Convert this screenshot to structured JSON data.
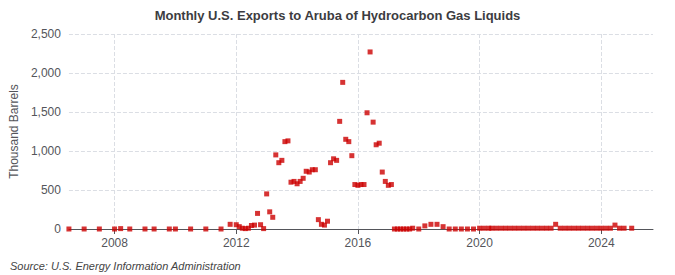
{
  "chart_data": {
    "type": "scatter",
    "title": "Monthly U.S. Exports to Aruba of Hydrocarbon Gas Liquids",
    "ylabel": "Thousand Barrels",
    "annotations": [
      "Source: U.S. Energy Information Administration"
    ],
    "color": "#cc0000",
    "marker": "square",
    "grid": true,
    "xlim": [
      2006.5,
      2025.7
    ],
    "xticks": [
      2008,
      2012,
      2016,
      2020,
      2024
    ],
    "ylim": [
      0,
      2500
    ],
    "yticks": [
      0,
      500,
      {
        "value": 1000,
        "label": "1,000"
      },
      {
        "value": 1500,
        "label": "1,500"
      },
      {
        "value": 2000,
        "label": "2,000"
      },
      {
        "value": 2500,
        "label": "2,500"
      }
    ],
    "x": [
      2006.5,
      2007.0,
      2007.5,
      2008.0,
      2008.2,
      2008.5,
      2009.0,
      2009.3,
      2009.8,
      2010.0,
      2010.5,
      2011.0,
      2011.5,
      2011.8,
      2012.0,
      2012.1,
      2012.2,
      2012.3,
      2012.4,
      2012.5,
      2012.6,
      2012.7,
      2012.8,
      2012.9,
      2013.0,
      2013.1,
      2013.2,
      2013.3,
      2013.4,
      2013.5,
      2013.6,
      2013.7,
      2013.8,
      2013.9,
      2014.0,
      2014.1,
      2014.2,
      2014.3,
      2014.4,
      2014.5,
      2014.6,
      2014.7,
      2014.8,
      2014.9,
      2015.0,
      2015.1,
      2015.2,
      2015.3,
      2015.4,
      2015.5,
      2015.6,
      2015.7,
      2015.8,
      2015.9,
      2016.0,
      2016.1,
      2016.2,
      2016.3,
      2016.4,
      2016.5,
      2016.6,
      2016.7,
      2016.8,
      2016.9,
      2017.0,
      2017.1,
      2017.2,
      2017.3,
      2017.4,
      2017.5,
      2017.6,
      2017.7,
      2017.8,
      2018.0,
      2018.2,
      2018.4,
      2018.6,
      2018.8,
      2019.0,
      2019.2,
      2019.4,
      2019.6,
      2019.8,
      2020.0,
      2020.15,
      2020.3,
      2020.4,
      2020.55,
      2020.7,
      2020.85,
      2021.0,
      2021.15,
      2021.3,
      2021.45,
      2021.6,
      2021.75,
      2021.9,
      2022.05,
      2022.2,
      2022.35,
      2022.5,
      2022.65,
      2022.8,
      2022.95,
      2023.1,
      2023.25,
      2023.4,
      2023.55,
      2023.7,
      2023.85,
      2024.0,
      2024.15,
      2024.3,
      2024.45,
      2024.6,
      2024.75,
      2025.0
    ],
    "values": [
      0,
      0,
      0,
      0,
      5,
      0,
      0,
      0,
      0,
      0,
      0,
      0,
      0,
      60,
      55,
      30,
      10,
      5,
      10,
      45,
      50,
      200,
      55,
      5,
      450,
      220,
      150,
      950,
      850,
      880,
      1120,
      1130,
      600,
      610,
      580,
      610,
      650,
      740,
      730,
      760,
      760,
      120,
      60,
      50,
      100,
      850,
      900,
      880,
      1380,
      1880,
      1150,
      1120,
      940,
      570,
      560,
      570,
      570,
      1490,
      2270,
      1370,
      1080,
      1100,
      730,
      610,
      560,
      570,
      0,
      0,
      0,
      0,
      0,
      0,
      10,
      0,
      40,
      60,
      60,
      30,
      0,
      0,
      0,
      0,
      0,
      10,
      10,
      10,
      10,
      10,
      10,
      10,
      10,
      10,
      10,
      10,
      10,
      10,
      10,
      10,
      10,
      10,
      60,
      10,
      10,
      10,
      10,
      10,
      10,
      10,
      10,
      10,
      10,
      10,
      10,
      50,
      10,
      10,
      10
    ]
  }
}
